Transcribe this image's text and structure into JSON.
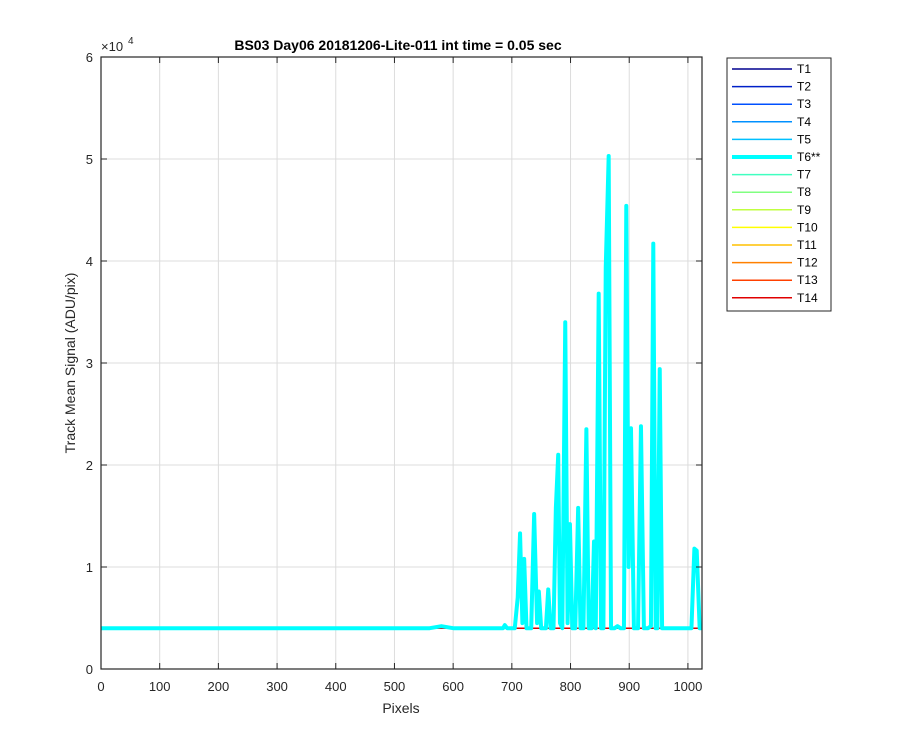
{
  "chart_data": {
    "type": "line",
    "title": "BS03 Day06 20181206-Lite-011 int time = 0.05 sec",
    "xlabel": "Pixels",
    "ylabel": "Track Mean Signal (ADU/pix)",
    "y_exponent_label": "×10",
    "y_exponent_power": "4",
    "xlim": [
      0,
      1024
    ],
    "ylim": [
      0,
      60000
    ],
    "x_ticks": [
      0,
      100,
      200,
      300,
      400,
      500,
      600,
      700,
      800,
      900,
      1000
    ],
    "x_tick_labels": [
      "0",
      "100",
      "200",
      "300",
      "400",
      "500",
      "600",
      "700",
      "800",
      "900",
      "1000"
    ],
    "y_ticks": [
      0,
      10000,
      20000,
      30000,
      40000,
      50000,
      60000
    ],
    "y_tick_labels": [
      "0",
      "1",
      "2",
      "3",
      "4",
      "5",
      "6"
    ],
    "grid": true,
    "legend_position": "outside-right",
    "baseline_value": 4000,
    "series": [
      {
        "name": "T1",
        "color": "#00008f",
        "width": 1.5
      },
      {
        "name": "T2",
        "color": "#0020c8",
        "width": 1.5
      },
      {
        "name": "T3",
        "color": "#0050ff",
        "width": 1.5
      },
      {
        "name": "T4",
        "color": "#0090ff",
        "width": 1.5
      },
      {
        "name": "T5",
        "color": "#00c0ff",
        "width": 1.5
      },
      {
        "name": "T6**",
        "color": "#00ffff",
        "width": 4,
        "points": [
          [
            0,
            4000
          ],
          [
            560,
            4000
          ],
          [
            580,
            4200
          ],
          [
            600,
            4000
          ],
          [
            685,
            4000
          ],
          [
            688,
            4300
          ],
          [
            692,
            4000
          ],
          [
            705,
            4000
          ],
          [
            710,
            7000
          ],
          [
            714,
            13300
          ],
          [
            718,
            4500
          ],
          [
            721,
            10800
          ],
          [
            725,
            4000
          ],
          [
            733,
            4000
          ],
          [
            738,
            15200
          ],
          [
            743,
            4500
          ],
          [
            746,
            7600
          ],
          [
            750,
            4000
          ],
          [
            758,
            4000
          ],
          [
            762,
            7800
          ],
          [
            766,
            4000
          ],
          [
            771,
            4000
          ],
          [
            775,
            15800
          ],
          [
            779,
            21000
          ],
          [
            782,
            4500
          ],
          [
            786,
            4000
          ],
          [
            791,
            34000
          ],
          [
            795,
            4500
          ],
          [
            799,
            14200
          ],
          [
            803,
            4000
          ],
          [
            808,
            4000
          ],
          [
            813,
            15800
          ],
          [
            817,
            4000
          ],
          [
            822,
            4000
          ],
          [
            827,
            23500
          ],
          [
            831,
            4000
          ],
          [
            836,
            4000
          ],
          [
            840,
            12500
          ],
          [
            843,
            4000
          ],
          [
            848,
            36800
          ],
          [
            852,
            4000
          ],
          [
            856,
            4000
          ],
          [
            860,
            39400
          ],
          [
            865,
            50300
          ],
          [
            869,
            4000
          ],
          [
            875,
            4000
          ],
          [
            880,
            4200
          ],
          [
            885,
            4000
          ],
          [
            891,
            4000
          ],
          [
            895,
            45400
          ],
          [
            899,
            10000
          ],
          [
            903,
            23600
          ],
          [
            908,
            4000
          ],
          [
            915,
            4000
          ],
          [
            920,
            23800
          ],
          [
            925,
            4000
          ],
          [
            932,
            4000
          ],
          [
            937,
            4200
          ],
          [
            941,
            41700
          ],
          [
            945,
            4000
          ],
          [
            948,
            4000
          ],
          [
            952,
            29400
          ],
          [
            956,
            4000
          ],
          [
            960,
            4000
          ],
          [
            1000,
            4000
          ],
          [
            1006,
            4000
          ],
          [
            1011,
            11800
          ],
          [
            1015,
            11600
          ],
          [
            1020,
            4000
          ],
          [
            1024,
            4000
          ]
        ]
      },
      {
        "name": "T7",
        "color": "#40ffc0",
        "width": 1.5
      },
      {
        "name": "T8",
        "color": "#80ff80",
        "width": 1.5
      },
      {
        "name": "T9",
        "color": "#c0ff40",
        "width": 1.5
      },
      {
        "name": "T10",
        "color": "#ffff00",
        "width": 1.5
      },
      {
        "name": "T11",
        "color": "#ffc000",
        "width": 1.5
      },
      {
        "name": "T12",
        "color": "#ff8000",
        "width": 1.5
      },
      {
        "name": "T13",
        "color": "#ff4000",
        "width": 1.5
      },
      {
        "name": "T14",
        "color": "#e00000",
        "width": 1.5
      }
    ]
  }
}
